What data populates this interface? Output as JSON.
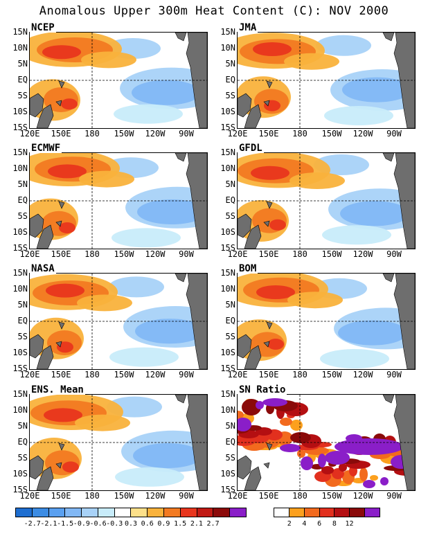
{
  "title": "Anomalous Upper 300m Heat Content (C): NOV 2000",
  "panels": [
    {
      "label": "NCEP"
    },
    {
      "label": "JMA"
    },
    {
      "label": "ECMWF"
    },
    {
      "label": "GFDL"
    },
    {
      "label": "NASA"
    },
    {
      "label": "BOM"
    },
    {
      "label": "ENS. Mean"
    },
    {
      "label": "SN Ratio"
    }
  ],
  "lat_labels": [
    "15N",
    "10N",
    "5N",
    "EQ",
    "5S",
    "10S",
    "15S"
  ],
  "lon_labels": [
    "120E",
    "150E",
    "180",
    "150W",
    "120W",
    "90W"
  ],
  "colorbar_anomaly": {
    "labels": [
      "-2.7",
      "-2.1",
      "-1.5",
      "-0.9",
      "-0.6",
      "-0.3",
      "0.3",
      "0.6",
      "0.9",
      "1.5",
      "2.1",
      "2.7"
    ],
    "colors": [
      "#1e6ed0",
      "#3c8ce4",
      "#5aa0f0",
      "#82b8f5",
      "#a8d2f8",
      "#c8ecfa",
      "#ffffff",
      "#fde08a",
      "#f9b23c",
      "#f27a22",
      "#e8361e",
      "#c01a14",
      "#8c0a0a",
      "#8a1ec8"
    ]
  },
  "colorbar_sn": {
    "labels": [
      "2",
      "4",
      "6",
      "8",
      "12"
    ],
    "colors": [
      "#ffffff",
      "#fca01e",
      "#f26a1e",
      "#e2301e",
      "#b40f12",
      "#8a0a0a",
      "#8a1ec8"
    ]
  },
  "colors": {
    "land": "#6e6e6e"
  }
}
